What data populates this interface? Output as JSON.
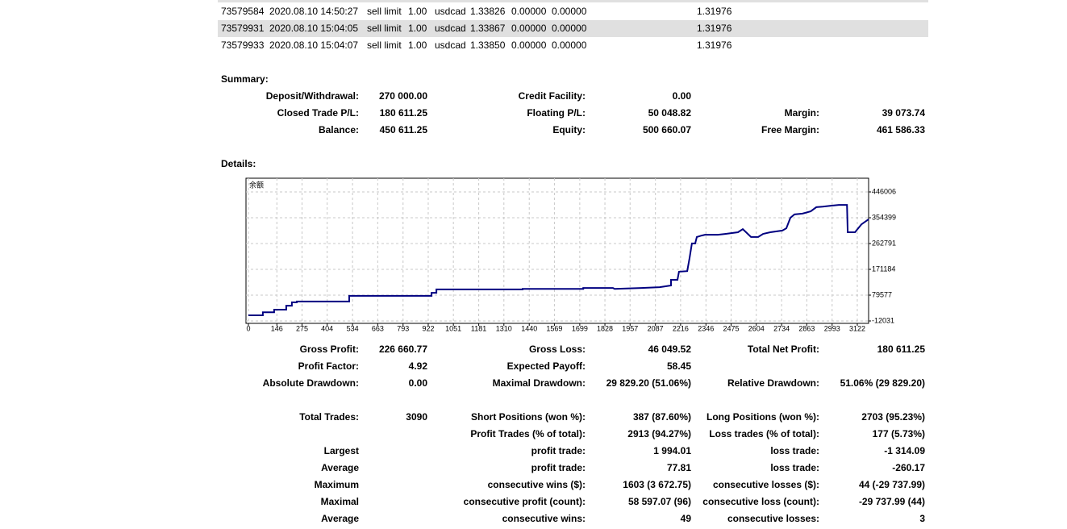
{
  "orders": [
    [
      "73579584",
      "2020.08.10 14:50:27",
      "sell limit",
      "1.00",
      "usdcad",
      "1.33826",
      "0.00000",
      "0.00000",
      "1.31976"
    ],
    [
      "73579931",
      "2020.08.10 15:04:05",
      "sell limit",
      "1.00",
      "usdcad",
      "1.33867",
      "0.00000",
      "0.00000",
      "1.31976"
    ],
    [
      "73579933",
      "2020.08.10 15:04:07",
      "sell limit",
      "1.00",
      "usdcad",
      "1.33850",
      "0.00000",
      "0.00000",
      "1.31976"
    ]
  ],
  "summary": {
    "title": "Summary:",
    "rows": [
      [
        "Deposit/Withdrawal:",
        "270 000.00",
        "Credit Facility:",
        "0.00",
        null,
        null
      ],
      [
        "Closed Trade P/L:",
        "180 611.25",
        "Floating P/L:",
        "50 048.82",
        "Margin:",
        "39 073.74"
      ],
      [
        "Balance:",
        "450 611.25",
        "Equity:",
        "500 660.07",
        "Free Margin:",
        "461 586.33"
      ]
    ]
  },
  "details": {
    "title": "Details:",
    "chart": {
      "type": "line",
      "title": "余额",
      "color": "#000080",
      "grid": true,
      "x": [
        0,
        74,
        74,
        132,
        132,
        194,
        194,
        223,
        223,
        248,
        248,
        517,
        517,
        939,
        939,
        964,
        964,
        1406,
        1406,
        1717,
        1717,
        1869,
        1878,
        2014,
        2109,
        2167,
        2167,
        2200,
        2208,
        2250,
        2262,
        2274,
        2291,
        2299,
        2324,
        2341,
        2407,
        2448,
        2510,
        2535,
        2552,
        2577,
        2614,
        2639,
        2676,
        2738,
        2758,
        2779,
        2800,
        2841,
        2883,
        2912,
        2945,
        2986,
        3027,
        3069,
        3073,
        3110,
        3143,
        3180
      ],
      "values": [
        8000,
        8000,
        19000,
        19000,
        28000,
        28000,
        42000,
        42000,
        54000,
        54000,
        57000,
        57000,
        77000,
        77000,
        88000,
        88000,
        100000,
        100000,
        102000,
        102000,
        105000,
        105000,
        102000,
        105000,
        108000,
        114000,
        134000,
        134000,
        163000,
        165000,
        211000,
        263000,
        263000,
        286000,
        291000,
        294000,
        294000,
        297000,
        303000,
        314000,
        303000,
        286000,
        286000,
        297000,
        303000,
        309000,
        317000,
        354000,
        366000,
        369000,
        377000,
        392000,
        394000,
        397000,
        400000,
        400000,
        303000,
        303000,
        331000,
        349000
      ],
      "xlim": [
        0,
        3180
      ],
      "ylim": [
        -20620,
        494670
      ],
      "xticks": [
        0,
        146,
        275,
        404,
        534,
        663,
        793,
        922,
        1051,
        1181,
        1310,
        1440,
        1569,
        1699,
        1828,
        1957,
        2087,
        2216,
        2346,
        2475,
        2604,
        2734,
        2863,
        2993,
        3122
      ],
      "yticks": [
        446006,
        354399,
        262791,
        171184,
        79577,
        -12031
      ]
    },
    "rows": [
      [
        "Gross Profit:",
        "226 660.77",
        "Gross Loss:",
        "46 049.52",
        "Total Net Profit:",
        "180 611.25"
      ],
      [
        "Profit Factor:",
        "4.92",
        "Expected Payoff:",
        "58.45",
        null,
        null
      ],
      [
        "Absolute Drawdown:",
        "0.00",
        "Maximal Drawdown:",
        "29 829.20 (51.06%)",
        "Relative Drawdown:",
        "51.06% (29 829.20)"
      ],
      null,
      [
        "Total Trades:",
        "3090",
        "Short Positions (won %):",
        "387 (87.60%)",
        "Long Positions (won %):",
        "2703 (95.23%)"
      ],
      [
        null,
        null,
        "Profit Trades (% of total):",
        "2913 (94.27%)",
        "Loss trades (% of total):",
        "177 (5.73%)"
      ],
      [
        "Largest",
        null,
        "profit trade:",
        "1 994.01",
        "loss trade:",
        "-1 314.09"
      ],
      [
        "Average",
        null,
        "profit trade:",
        "77.81",
        "loss trade:",
        "-260.17"
      ],
      [
        "Maximum",
        null,
        "consecutive wins ($):",
        "1603 (3 672.75)",
        "consecutive losses ($):",
        "44 (-29 737.99)"
      ],
      [
        "Maximal",
        null,
        "consecutive profit (count):",
        "58 597.07 (96)",
        "consecutive loss (count):",
        "-29 737.99 (44)"
      ],
      [
        "Average",
        null,
        "consecutive wins:",
        "49",
        "consecutive losses:",
        "3"
      ]
    ]
  }
}
